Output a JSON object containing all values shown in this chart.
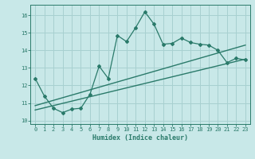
{
  "xlabel": "Humidex (Indice chaleur)",
  "ylabel": "",
  "bg_color": "#c8e8e8",
  "line_color": "#2a7a6a",
  "xlim": [
    -0.5,
    23.5
  ],
  "ylim": [
    9.8,
    16.6
  ],
  "yticks": [
    10,
    11,
    12,
    13,
    14,
    15,
    16
  ],
  "xticks": [
    0,
    1,
    2,
    3,
    4,
    5,
    6,
    7,
    8,
    9,
    10,
    11,
    12,
    13,
    14,
    15,
    16,
    17,
    18,
    19,
    20,
    21,
    22,
    23
  ],
  "jagged_x": [
    0,
    1,
    2,
    3,
    4,
    5,
    6,
    7,
    8,
    9,
    10,
    11,
    12,
    13,
    14,
    15,
    16,
    17,
    18,
    19,
    20,
    21,
    22,
    23
  ],
  "jagged_y": [
    12.4,
    11.4,
    10.7,
    10.45,
    10.65,
    10.7,
    11.5,
    13.1,
    12.4,
    14.85,
    14.5,
    15.3,
    16.2,
    15.5,
    14.35,
    14.4,
    14.7,
    14.45,
    14.35,
    14.3,
    14.0,
    13.3,
    13.55,
    13.45
  ],
  "trend1_x": [
    0,
    23
  ],
  "trend1_y": [
    10.85,
    14.3
  ],
  "trend2_x": [
    0,
    23
  ],
  "trend2_y": [
    10.6,
    13.5
  ],
  "grid_color": "#a8d0d0",
  "xlabel_fontsize": 6.0,
  "tick_fontsize": 5.0
}
